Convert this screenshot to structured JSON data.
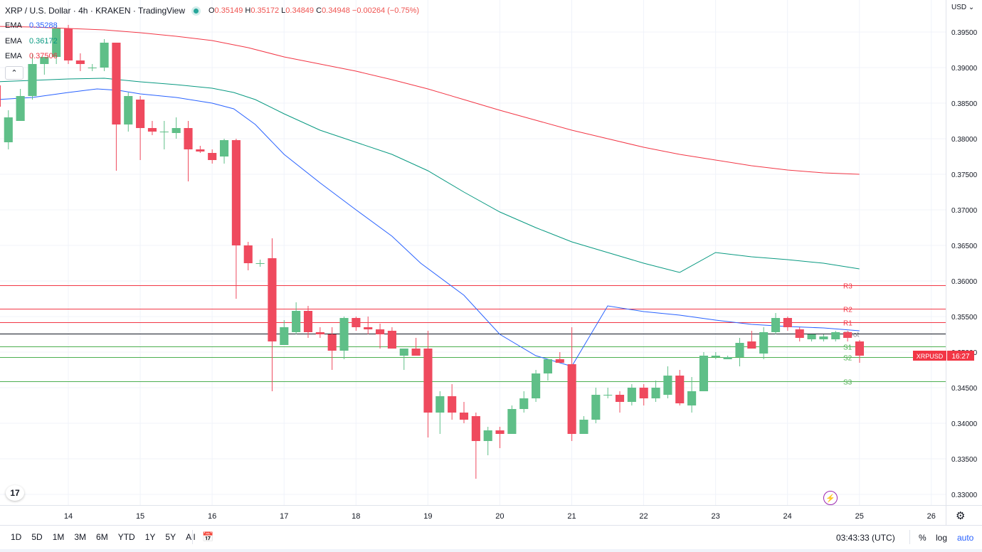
{
  "header": {
    "symbol": "XRP / U.S. Dollar · 4h · KRAKEN · TradingView",
    "open_label": "O",
    "open": "0.35149",
    "high_label": "H",
    "high": "0.35172",
    "low_label": "L",
    "low": "0.34849",
    "close_label": "C",
    "close": "0.34948",
    "change": "−0.00264 (−0.75%)"
  },
  "emas": [
    {
      "label": "EMA",
      "value": "0.35288",
      "color": "#2962ff"
    },
    {
      "label": "EMA",
      "value": "0.36172",
      "color": "#089981"
    },
    {
      "label": "EMA",
      "value": "0.37506",
      "color": "#f23645"
    }
  ],
  "currency": "USD",
  "collapse_icon": "⌃",
  "logo_text": "17",
  "price_tag": {
    "label": "XRPUSD",
    "value": "16:27"
  },
  "timeframes": [
    "1D",
    "5D",
    "1M",
    "3M",
    "6M",
    "YTD",
    "1Y",
    "5Y",
    "All"
  ],
  "clock": "03:43:33 (UTC)",
  "scale_opts": {
    "percent": "%",
    "log": "log",
    "auto": "auto"
  },
  "colors": {
    "up": "#26a69a",
    "down": "#ef5350",
    "upFill": "#5fbf88",
    "downFill": "#ef4a5e"
  },
  "chart_data": {
    "type": "candlestick",
    "title": "XRP / U.S. Dollar · 4h · KRAKEN",
    "ylim": [
      0.3285,
      0.3995
    ],
    "xlim": [
      13.05,
      26.2
    ],
    "yticks": [
      "0.39500",
      "0.39000",
      "0.38500",
      "0.38000",
      "0.37500",
      "0.37000",
      "0.36500",
      "0.36000",
      "0.35500",
      "0.35000",
      "0.34500",
      "0.34000",
      "0.33500",
      "0.33000"
    ],
    "xticks": [
      {
        "t": 14,
        "label": "14"
      },
      {
        "t": 15,
        "label": "15"
      },
      {
        "t": 16,
        "label": "16"
      },
      {
        "t": 17,
        "label": "17"
      },
      {
        "t": 18,
        "label": "18"
      },
      {
        "t": 19,
        "label": "19"
      },
      {
        "t": 20,
        "label": "20"
      },
      {
        "t": 21,
        "label": "21"
      },
      {
        "t": 22,
        "label": "22"
      },
      {
        "t": 23,
        "label": "23"
      },
      {
        "t": 24,
        "label": "24"
      },
      {
        "t": 25,
        "label": "25"
      },
      {
        "t": 26,
        "label": "26"
      }
    ],
    "first_time": 13.0,
    "step": 0.1667,
    "candles": [
      [
        0.3875,
        0.388,
        0.3835,
        0.3845
      ],
      [
        0.3795,
        0.384,
        0.3785,
        0.383
      ],
      [
        0.3825,
        0.387,
        0.3825,
        0.386
      ],
      [
        0.386,
        0.392,
        0.3855,
        0.3905
      ],
      [
        0.3905,
        0.3915,
        0.389,
        0.3915
      ],
      [
        0.3915,
        0.396,
        0.3905,
        0.3955
      ],
      [
        0.3955,
        0.396,
        0.3905,
        0.391
      ],
      [
        0.391,
        0.392,
        0.3895,
        0.3905
      ],
      [
        0.39,
        0.3905,
        0.3895,
        0.39
      ],
      [
        0.39,
        0.394,
        0.3895,
        0.3935
      ],
      [
        0.3935,
        0.3935,
        0.3755,
        0.382
      ],
      [
        0.382,
        0.3865,
        0.381,
        0.386
      ],
      [
        0.3855,
        0.386,
        0.377,
        0.3815
      ],
      [
        0.3815,
        0.3825,
        0.3805,
        0.381
      ],
      [
        0.381,
        0.3825,
        0.3785,
        0.381
      ],
      [
        0.3808,
        0.383,
        0.38,
        0.3815
      ],
      [
        0.3815,
        0.3825,
        0.374,
        0.3785
      ],
      [
        0.3785,
        0.379,
        0.378,
        0.3782
      ],
      [
        0.378,
        0.3785,
        0.3765,
        0.377
      ],
      [
        0.3775,
        0.38,
        0.3765,
        0.3798
      ],
      [
        0.3798,
        0.38,
        0.3575,
        0.365
      ],
      [
        0.365,
        0.3655,
        0.3615,
        0.3625
      ],
      [
        0.3625,
        0.363,
        0.362,
        0.3625
      ],
      [
        0.3632,
        0.366,
        0.3445,
        0.3515
      ],
      [
        0.351,
        0.3545,
        0.351,
        0.3535
      ],
      [
        0.3528,
        0.357,
        0.3525,
        0.3558
      ],
      [
        0.3558,
        0.3565,
        0.352,
        0.3528
      ],
      [
        0.3528,
        0.3535,
        0.352,
        0.3525
      ],
      [
        0.3525,
        0.3535,
        0.3475,
        0.3502
      ],
      [
        0.3502,
        0.355,
        0.349,
        0.3548
      ],
      [
        0.3548,
        0.355,
        0.353,
        0.3535
      ],
      [
        0.3535,
        0.355,
        0.3525,
        0.3532
      ],
      [
        0.3532,
        0.354,
        0.3505,
        0.3525
      ],
      [
        0.353,
        0.3535,
        0.3505,
        0.3505
      ],
      [
        0.3495,
        0.3505,
        0.3475,
        0.3505
      ],
      [
        0.3505,
        0.352,
        0.3495,
        0.3495
      ],
      [
        0.3505,
        0.353,
        0.338,
        0.3415
      ],
      [
        0.3415,
        0.3445,
        0.3385,
        0.3438
      ],
      [
        0.3438,
        0.3455,
        0.3405,
        0.3415
      ],
      [
        0.3415,
        0.343,
        0.34,
        0.3405
      ],
      [
        0.341,
        0.3415,
        0.3322,
        0.3375
      ],
      [
        0.3375,
        0.3395,
        0.3355,
        0.339
      ],
      [
        0.339,
        0.3395,
        0.3365,
        0.3385
      ],
      [
        0.3385,
        0.3425,
        0.3385,
        0.342
      ],
      [
        0.342,
        0.3445,
        0.3415,
        0.3435
      ],
      [
        0.3435,
        0.3475,
        0.343,
        0.347
      ],
      [
        0.347,
        0.349,
        0.346,
        0.349
      ],
      [
        0.349,
        0.35,
        0.3485,
        0.3485
      ],
      [
        0.3483,
        0.3535,
        0.3375,
        0.3385
      ],
      [
        0.3385,
        0.341,
        0.3385,
        0.3405
      ],
      [
        0.3405,
        0.345,
        0.34,
        0.344
      ],
      [
        0.344,
        0.345,
        0.3435,
        0.344
      ],
      [
        0.344,
        0.3445,
        0.3415,
        0.343
      ],
      [
        0.343,
        0.3455,
        0.3425,
        0.345
      ],
      [
        0.345,
        0.3455,
        0.3425,
        0.3435
      ],
      [
        0.3435,
        0.346,
        0.343,
        0.345
      ],
      [
        0.344,
        0.348,
        0.3435,
        0.3467
      ],
      [
        0.3467,
        0.3475,
        0.3425,
        0.3428
      ],
      [
        0.3425,
        0.3465,
        0.3415,
        0.3445
      ],
      [
        0.3445,
        0.35,
        0.3445,
        0.3495
      ],
      [
        0.3493,
        0.35,
        0.349,
        0.3495
      ],
      [
        0.349,
        0.3495,
        0.349,
        0.3493
      ],
      [
        0.3493,
        0.352,
        0.348,
        0.3513
      ],
      [
        0.3515,
        0.353,
        0.3505,
        0.3505
      ],
      [
        0.3498,
        0.3535,
        0.349,
        0.3528
      ],
      [
        0.3528,
        0.3555,
        0.3525,
        0.3548
      ],
      [
        0.3548,
        0.355,
        0.353,
        0.3535
      ],
      [
        0.3532,
        0.3535,
        0.3515,
        0.352
      ],
      [
        0.3518,
        0.3525,
        0.3515,
        0.3525
      ],
      [
        0.3518,
        0.3525,
        0.3515,
        0.3522
      ],
      [
        0.3518,
        0.353,
        0.3515,
        0.3528
      ],
      [
        0.3528,
        0.353,
        0.3515,
        0.352
      ],
      [
        0.3515,
        0.3517,
        0.3485,
        0.3495
      ]
    ],
    "ema_series": [
      {
        "name": "EMA",
        "value": "0.35288",
        "color": "#2962ff",
        "points": [
          [
            13.0,
            0.3855
          ],
          [
            13.5,
            0.3858
          ],
          [
            14.0,
            0.3865
          ],
          [
            14.4,
            0.387
          ],
          [
            14.7,
            0.3868
          ],
          [
            15.0,
            0.3863
          ],
          [
            15.5,
            0.3858
          ],
          [
            16.0,
            0.385
          ],
          [
            16.3,
            0.3842
          ],
          [
            16.6,
            0.382
          ],
          [
            17.0,
            0.3778
          ],
          [
            17.5,
            0.3738
          ],
          [
            18.0,
            0.37
          ],
          [
            18.5,
            0.3663
          ],
          [
            18.9,
            0.3625
          ],
          [
            19.5,
            0.358
          ],
          [
            20.0,
            0.3525
          ],
          [
            20.5,
            0.3495
          ],
          [
            21.0,
            0.348
          ],
          [
            21.5,
            0.3565
          ],
          [
            22.0,
            0.3557
          ],
          [
            22.5,
            0.3552
          ],
          [
            23.0,
            0.3545
          ],
          [
            23.5,
            0.3539
          ],
          [
            24.0,
            0.3536
          ],
          [
            24.5,
            0.3534
          ],
          [
            25.0,
            0.353
          ]
        ]
      },
      {
        "name": "EMA",
        "value": "0.36172",
        "color": "#089981",
        "points": [
          [
            13.0,
            0.388
          ],
          [
            13.5,
            0.3882
          ],
          [
            14.0,
            0.3884
          ],
          [
            14.5,
            0.3885
          ],
          [
            15.0,
            0.388
          ],
          [
            15.5,
            0.3876
          ],
          [
            16.0,
            0.3871
          ],
          [
            16.3,
            0.3865
          ],
          [
            16.6,
            0.3855
          ],
          [
            17.0,
            0.3835
          ],
          [
            17.5,
            0.3812
          ],
          [
            18.0,
            0.3795
          ],
          [
            18.5,
            0.3778
          ],
          [
            19.0,
            0.3755
          ],
          [
            19.5,
            0.3725
          ],
          [
            20.0,
            0.3697
          ],
          [
            20.5,
            0.3675
          ],
          [
            21.0,
            0.3655
          ],
          [
            21.5,
            0.364
          ],
          [
            22.0,
            0.3625
          ],
          [
            22.5,
            0.3612
          ],
          [
            23.0,
            0.364
          ],
          [
            23.5,
            0.3634
          ],
          [
            24.0,
            0.363
          ],
          [
            24.5,
            0.3625
          ],
          [
            25.0,
            0.3617
          ]
        ]
      },
      {
        "name": "EMA",
        "value": "0.37506",
        "color": "#f23645",
        "points": [
          [
            13.0,
            0.3958
          ],
          [
            13.5,
            0.3957
          ],
          [
            14.0,
            0.3955
          ],
          [
            14.5,
            0.3953
          ],
          [
            15.0,
            0.3949
          ],
          [
            15.5,
            0.3944
          ],
          [
            16.0,
            0.3938
          ],
          [
            16.5,
            0.3928
          ],
          [
            17.0,
            0.3915
          ],
          [
            17.5,
            0.3905
          ],
          [
            18.0,
            0.3895
          ],
          [
            18.5,
            0.3883
          ],
          [
            19.0,
            0.387
          ],
          [
            19.5,
            0.3855
          ],
          [
            20.0,
            0.384
          ],
          [
            20.5,
            0.3826
          ],
          [
            21.0,
            0.3812
          ],
          [
            21.5,
            0.38
          ],
          [
            22.0,
            0.3788
          ],
          [
            22.5,
            0.3778
          ],
          [
            23.0,
            0.377
          ],
          [
            23.5,
            0.3762
          ],
          [
            24.0,
            0.3756
          ],
          [
            24.5,
            0.3752
          ],
          [
            25.0,
            0.375
          ]
        ]
      }
    ],
    "pivot_levels": [
      {
        "label": "R3",
        "value": 0.3594,
        "color": "#f23645"
      },
      {
        "label": "R2",
        "value": 0.3561,
        "color": "#f23645"
      },
      {
        "label": "R1",
        "value": 0.3542,
        "color": "#f23645"
      },
      {
        "label": "Pivot",
        "value": 0.3526,
        "color": "#131722"
      },
      {
        "label": "S1",
        "value": 0.3508,
        "color": "#4caf50"
      },
      {
        "label": "S2",
        "value": 0.3493,
        "color": "#4caf50"
      },
      {
        "label": "S3",
        "value": 0.3459,
        "color": "#4caf50"
      }
    ],
    "last_price": 0.3495
  }
}
